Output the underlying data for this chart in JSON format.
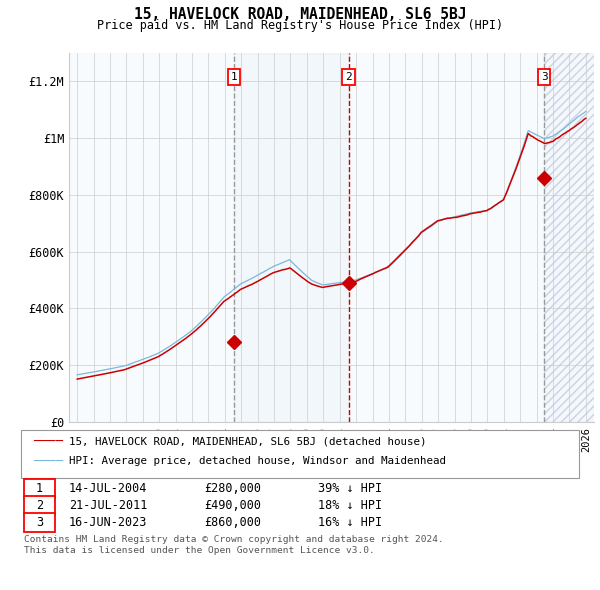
{
  "title": "15, HAVELOCK ROAD, MAIDENHEAD, SL6 5BJ",
  "subtitle": "Price paid vs. HM Land Registry's House Price Index (HPI)",
  "hpi_label": "HPI: Average price, detached house, Windsor and Maidenhead",
  "price_label": "15, HAVELOCK ROAD, MAIDENHEAD, SL6 5BJ (detached house)",
  "footer1": "Contains HM Land Registry data © Crown copyright and database right 2024.",
  "footer2": "This data is licensed under the Open Government Licence v3.0.",
  "sales": [
    {
      "num": 1,
      "date": "14-JUL-2004",
      "price": 280000,
      "pct": "39%",
      "dir": "↓",
      "x": 2004.54
    },
    {
      "num": 2,
      "date": "21-JUL-2011",
      "price": 490000,
      "pct": "18%",
      "dir": "↓",
      "x": 2011.54
    },
    {
      "num": 3,
      "date": "16-JUN-2023",
      "price": 860000,
      "pct": "16%",
      "dir": "↓",
      "x": 2023.46
    }
  ],
  "sale_prices": [
    280000,
    490000,
    860000
  ],
  "ylim": [
    0,
    1300000
  ],
  "xlim": [
    1994.5,
    2026.5
  ],
  "yticks": [
    0,
    200000,
    400000,
    600000,
    800000,
    1000000,
    1200000
  ],
  "ytick_labels": [
    "£0",
    "£200K",
    "£400K",
    "£600K",
    "£800K",
    "£1M",
    "£1.2M"
  ],
  "hpi_color": "#7ab8d9",
  "price_color": "#cc0000",
  "vline_gray_color": "#888888",
  "vline_red_color": "#cc0000",
  "shade_color": "#d6e8f5",
  "grid_color": "#cccccc",
  "bg_color": "#ffffff"
}
